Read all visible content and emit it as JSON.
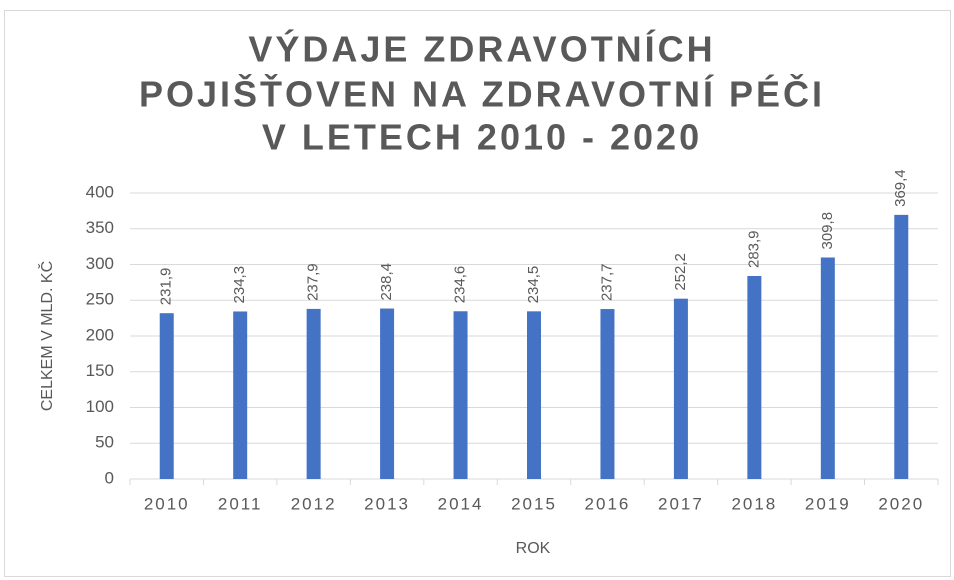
{
  "chart_data": {
    "type": "bar",
    "title": [
      "VÝDAJE ZDRAVOTNÍCH",
      "POJIŠŤOVEN NA ZDRAVOTNÍ PÉČI",
      "V LETECH 2010 - 2020"
    ],
    "x_label": "ROK",
    "y_label": "CELKEM V MLD. KČ",
    "categories": [
      "2010",
      "2011",
      "2012",
      "2013",
      "2014",
      "2015",
      "2016",
      "2017",
      "2018",
      "2019",
      "2020"
    ],
    "values": [
      231.9,
      234.3,
      237.9,
      238.4,
      234.6,
      234.5,
      237.7,
      252.2,
      283.9,
      309.8,
      369.4
    ],
    "value_labels": [
      "231,9",
      "234,3",
      "237,9",
      "238,4",
      "234,6",
      "234,5",
      "237,7",
      "252,2",
      "283,9",
      "309,8",
      "369,4"
    ],
    "color": "#4472c4",
    "ylim": [
      0,
      400
    ],
    "yticks": [
      0,
      50,
      100,
      150,
      200,
      250,
      300,
      350,
      400
    ],
    "grid": true
  }
}
